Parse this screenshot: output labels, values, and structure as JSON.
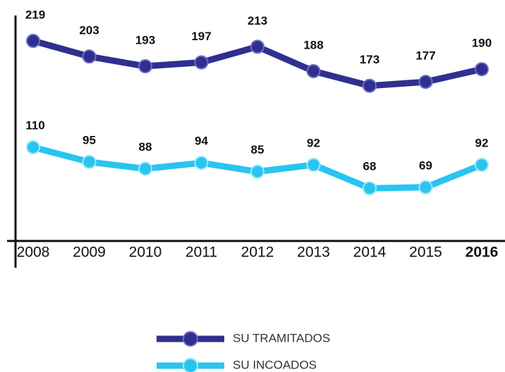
{
  "chart_data": {
    "type": "line",
    "categories": [
      "2008",
      "2009",
      "2010",
      "2011",
      "2012",
      "2013",
      "2014",
      "2015",
      "2016"
    ],
    "series": [
      {
        "name": "SU TRAMITADOS",
        "color": "#2e2f8f",
        "values": [
          219,
          203,
          193,
          197,
          213,
          188,
          173,
          177,
          190
        ]
      },
      {
        "name": "SU INCOADOS",
        "color": "#29c4f0",
        "values": [
          110,
          95,
          88,
          94,
          85,
          92,
          68,
          69,
          92
        ]
      }
    ],
    "ylim": [
      14,
      245
    ]
  }
}
